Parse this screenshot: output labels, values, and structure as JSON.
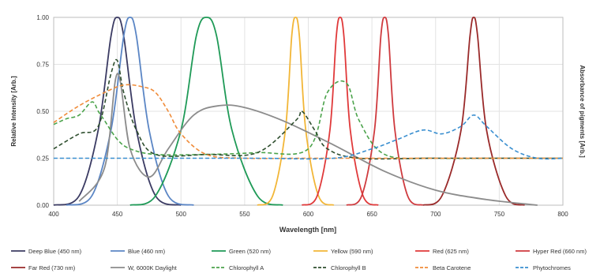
{
  "chart_data": {
    "type": "line",
    "xlabel": "Wavelength [nm]",
    "ylabel": "Relative Intensity [Arb.]",
    "y2label": "Absorbance of pigments [Arb.]",
    "xlim": [
      400,
      800
    ],
    "ylim": [
      0,
      1
    ],
    "x_ticks": [
      "400",
      "450",
      "500",
      "550",
      "600",
      "650",
      "700",
      "750",
      "800"
    ],
    "y_ticks": [
      "0.00",
      "0.25",
      "0.50",
      "0.75",
      "1.00"
    ],
    "grid": true,
    "legend_position": "bottom",
    "series": [
      {
        "name": "Deep Blue (450 nm)",
        "color": "#3b3b63",
        "dash": "solid",
        "x": [
          400,
          420,
          435,
          445,
          450,
          455,
          465,
          480,
          500
        ],
        "y": [
          0,
          0.05,
          0.4,
          0.9,
          1.0,
          0.9,
          0.4,
          0.05,
          0
        ]
      },
      {
        "name": "Blue (460 nm)",
        "color": "#5b86c5",
        "dash": "solid",
        "x": [
          410,
          430,
          445,
          455,
          460,
          465,
          475,
          490,
          510
        ],
        "y": [
          0,
          0.05,
          0.4,
          0.9,
          1.0,
          0.9,
          0.4,
          0.05,
          0
        ]
      },
      {
        "name": "Green (520 nm)",
        "color": "#1f9a57",
        "dash": "solid",
        "x": [
          460,
          480,
          500,
          512,
          520,
          528,
          540,
          560,
          580
        ],
        "y": [
          0,
          0.05,
          0.4,
          0.9,
          1.0,
          0.9,
          0.4,
          0.05,
          0
        ]
      },
      {
        "name": "Yellow (590 nm)",
        "color": "#f2b637",
        "dash": "solid",
        "x": [
          560,
          572,
          582,
          587,
          590,
          593,
          598,
          608,
          620
        ],
        "y": [
          0,
          0.05,
          0.4,
          0.9,
          1.0,
          0.9,
          0.4,
          0.05,
          0
        ]
      },
      {
        "name": "Red (625 nm)",
        "color": "#e0393a",
        "dash": "solid",
        "x": [
          595,
          607,
          617,
          622,
          625,
          628,
          633,
          643,
          655
        ],
        "y": [
          0,
          0.05,
          0.4,
          0.9,
          1.0,
          0.9,
          0.4,
          0.05,
          0
        ]
      },
      {
        "name": "Hyper Red (660 nm)",
        "color": "#cf3a3e",
        "dash": "solid",
        "x": [
          630,
          642,
          652,
          657,
          660,
          663,
          668,
          678,
          690
        ],
        "y": [
          0,
          0.05,
          0.4,
          0.9,
          1.0,
          0.9,
          0.4,
          0.05,
          0
        ]
      },
      {
        "name": "Far Red (730 nm)",
        "color": "#9a2a2a",
        "dash": "solid",
        "x": [
          690,
          705,
          720,
          727,
          730,
          733,
          740,
          755,
          770
        ],
        "y": [
          0,
          0.05,
          0.4,
          0.9,
          1.0,
          0.9,
          0.4,
          0.05,
          0
        ]
      },
      {
        "name": "W, 6000K Daylight",
        "color": "#8c8c8c",
        "dash": "solid",
        "x": [
          420,
          440,
          450,
          460,
          475,
          490,
          510,
          530,
          550,
          580,
          620,
          660,
          700,
          740,
          780
        ],
        "y": [
          0.02,
          0.2,
          0.7,
          0.3,
          0.15,
          0.3,
          0.48,
          0.53,
          0.52,
          0.45,
          0.32,
          0.18,
          0.08,
          0.03,
          0
        ]
      },
      {
        "name": "Chlorophyll A",
        "color": "#4ba34b",
        "dash": "dashed",
        "x": [
          400,
          410,
          420,
          430,
          435,
          440,
          450,
          460,
          480,
          520,
          560,
          600,
          615,
          630,
          640,
          660,
          700,
          750,
          800
        ],
        "y": [
          0.43,
          0.46,
          0.48,
          0.55,
          0.5,
          0.45,
          0.35,
          0.3,
          0.27,
          0.27,
          0.28,
          0.3,
          0.6,
          0.65,
          0.45,
          0.27,
          0.25,
          0.25,
          0.25
        ]
      },
      {
        "name": "Chlorophyll B",
        "color": "#2f4f2f",
        "dash": "dashed",
        "x": [
          400,
          420,
          435,
          445,
          450,
          455,
          465,
          480,
          520,
          560,
          590,
          595,
          605,
          615,
          640,
          700,
          800
        ],
        "y": [
          0.3,
          0.38,
          0.42,
          0.7,
          0.77,
          0.6,
          0.4,
          0.27,
          0.27,
          0.28,
          0.45,
          0.5,
          0.4,
          0.3,
          0.25,
          0.25,
          0.25
        ]
      },
      {
        "name": "Beta Carotene",
        "color": "#f08c3a",
        "dash": "dashed",
        "x": [
          400,
          420,
          440,
          455,
          470,
          480,
          490,
          500,
          520,
          550,
          600,
          700,
          800
        ],
        "y": [
          0.44,
          0.53,
          0.6,
          0.64,
          0.63,
          0.6,
          0.5,
          0.38,
          0.27,
          0.25,
          0.25,
          0.25,
          0.25
        ]
      },
      {
        "name": "Phytochromes",
        "color": "#3a8fd0",
        "dash": "dashed",
        "x": [
          400,
          500,
          560,
          620,
          650,
          670,
          690,
          705,
          720,
          730,
          740,
          760,
          780,
          800
        ],
        "y": [
          0.25,
          0.25,
          0.25,
          0.25,
          0.3,
          0.35,
          0.4,
          0.38,
          0.42,
          0.48,
          0.42,
          0.3,
          0.25,
          0.25
        ]
      }
    ]
  }
}
